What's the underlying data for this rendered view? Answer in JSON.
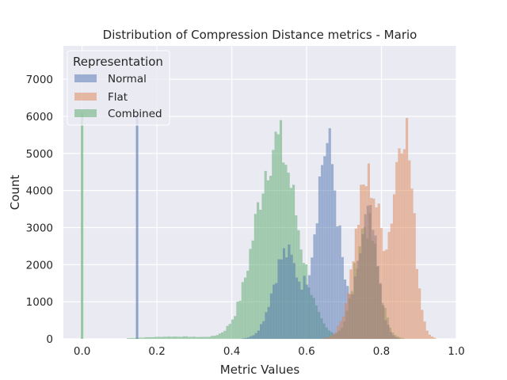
{
  "chart_data": {
    "type": "histogram",
    "title": "Distribution of Compression Distance metrics - Mario",
    "xlabel": "Metric Values",
    "ylabel": "Count",
    "xlim": [
      -0.05,
      1.0
    ],
    "ylim": [
      0,
      7900
    ],
    "xticks": [
      "0.0",
      "0.2",
      "0.4",
      "0.6",
      "0.8",
      "1.0"
    ],
    "yticks": [
      "0",
      "1000",
      "2000",
      "3000",
      "4000",
      "5000",
      "6000",
      "7000"
    ],
    "grid": true,
    "background": "#eaeaf2",
    "bin_width": 0.0068,
    "legend": {
      "title": "Representation",
      "placement": "top-left"
    },
    "series": [
      {
        "name": "Normal",
        "color": "#4c72b0",
        "spikes": [
          {
            "x": 0.147,
            "y": 6050
          }
        ],
        "components": [
          {
            "mu": 0.545,
            "sigma": 0.035,
            "amp": 2300
          },
          {
            "mu": 0.655,
            "sigma": 0.03,
            "amp": 5200
          },
          {
            "mu": 0.765,
            "sigma": 0.025,
            "amp": 3300
          }
        ],
        "range": [
          0.38,
          0.9
        ]
      },
      {
        "name": "Flat",
        "color": "#dd8452",
        "spikes": [],
        "components": [
          {
            "mu": 0.765,
            "sigma": 0.035,
            "amp": 4300
          },
          {
            "mu": 0.86,
            "sigma": 0.025,
            "amp": 5800
          }
        ],
        "range": [
          0.62,
          0.96
        ]
      },
      {
        "name": "Combined",
        "color": "#55a868",
        "spikes": [
          {
            "x": 0.0,
            "y": 6100
          }
        ],
        "components": [
          {
            "mu": 0.52,
            "sigma": 0.055,
            "amp": 5300
          },
          {
            "mu": 0.76,
            "sigma": 0.03,
            "amp": 3100
          },
          {
            "mu": 0.25,
            "sigma": 0.08,
            "amp": 60
          }
        ],
        "range": [
          0.12,
          0.92
        ]
      }
    ]
  }
}
